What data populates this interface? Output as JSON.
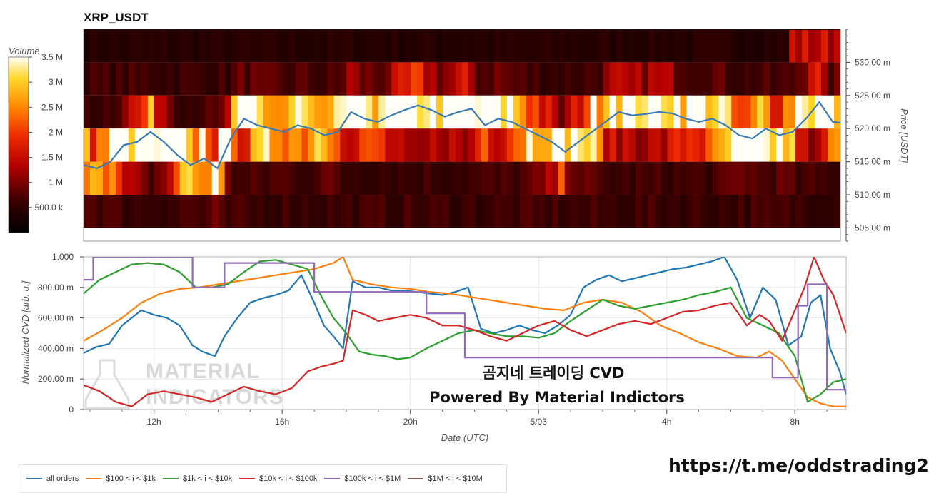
{
  "chart_data": [
    {
      "type": "heatmap",
      "title": "XRP_USDT",
      "ylabel": "Price [USDT]",
      "ylim": [
        0.503,
        0.535
      ],
      "yticks": [
        "505.00 m",
        "510.00 m",
        "515.00 m",
        "520.00 m",
        "525.00 m",
        "530.00 m"
      ],
      "ytick_values": [
        0.505,
        0.51,
        0.515,
        0.52,
        0.525,
        0.53
      ],
      "price_bands": [
        0.5325,
        0.5275,
        0.5225,
        0.5175,
        0.5125,
        0.5075
      ],
      "colorbar": {
        "label": "Volume",
        "ticks": [
          "500.0 k",
          "1 M",
          "1.5 M",
          "2 M",
          "2.5 M",
          "3 M",
          "3.5 M"
        ],
        "tick_values": [
          500000,
          1000000,
          1500000,
          2000000,
          2500000,
          3000000,
          3500000
        ],
        "range": [
          0,
          3500000
        ]
      },
      "price_series": {
        "color": "#3a7bb5",
        "values": [
          0.5145,
          0.514,
          0.515,
          0.5175,
          0.518,
          0.5195,
          0.518,
          0.516,
          0.5145,
          0.5155,
          0.514,
          0.5185,
          0.5215,
          0.5205,
          0.52,
          0.5195,
          0.5205,
          0.52,
          0.519,
          0.5195,
          0.5225,
          0.5215,
          0.521,
          0.522,
          0.5228,
          0.5235,
          0.5228,
          0.5218,
          0.5225,
          0.523,
          0.5205,
          0.5215,
          0.521,
          0.52,
          0.519,
          0.518,
          0.5165,
          0.518,
          0.5195,
          0.521,
          0.5225,
          0.522,
          0.5222,
          0.5225,
          0.5223,
          0.5215,
          0.521,
          0.5215,
          0.5205,
          0.519,
          0.5185,
          0.52,
          0.519,
          0.5195,
          0.5215,
          0.524,
          0.521,
          0.5208
        ]
      }
    },
    {
      "type": "line",
      "xlabel": "Date (UTC)",
      "ylabel": "Normalized CVD [arb. u.]",
      "ylim": [
        0,
        1
      ],
      "yticks": [
        "0",
        "200.00 m",
        "400.00 m",
        "600.00 m",
        "800.00 m",
        "1.000"
      ],
      "ytick_values": [
        0,
        0.2,
        0.4,
        0.6,
        0.8,
        1.0
      ],
      "xticks": [
        "12h",
        "16h",
        "20h",
        "5/03",
        "4h",
        "8h"
      ],
      "xtick_hours": [
        12,
        16,
        20,
        24,
        28,
        32
      ],
      "xlim_hours": [
        9.8,
        33.6
      ],
      "series": [
        {
          "name": "all orders",
          "color": "#1f77b4",
          "x": [
            9.8,
            10.2,
            10.6,
            11.0,
            11.3,
            11.6,
            12.0,
            12.4,
            12.8,
            13.2,
            13.5,
            13.9,
            14.2,
            14.6,
            15.0,
            15.4,
            15.8,
            16.2,
            16.6,
            17.0,
            17.3,
            17.6,
            17.9,
            18.2,
            18.6,
            19.0,
            19.4,
            19.8,
            20.2,
            20.6,
            21.0,
            21.4,
            21.8,
            22.2,
            22.6,
            23.0,
            23.4,
            23.8,
            24.2,
            24.6,
            25.0,
            25.4,
            25.8,
            26.2,
            26.6,
            27.0,
            27.4,
            27.8,
            28.2,
            28.6,
            29.0,
            29.4,
            29.8,
            30.2,
            30.6,
            31.0,
            31.4,
            31.8,
            32.2,
            32.5,
            32.8,
            33.1,
            33.4,
            33.6
          ],
          "y": [
            0.37,
            0.41,
            0.43,
            0.55,
            0.6,
            0.65,
            0.62,
            0.6,
            0.55,
            0.42,
            0.38,
            0.35,
            0.48,
            0.6,
            0.7,
            0.73,
            0.75,
            0.78,
            0.88,
            0.7,
            0.55,
            0.48,
            0.4,
            0.84,
            0.8,
            0.8,
            0.78,
            0.78,
            0.77,
            0.76,
            0.75,
            0.77,
            0.8,
            0.53,
            0.5,
            0.52,
            0.55,
            0.52,
            0.5,
            0.55,
            0.62,
            0.8,
            0.85,
            0.88,
            0.84,
            0.86,
            0.88,
            0.9,
            0.92,
            0.93,
            0.95,
            0.97,
            1.0,
            0.85,
            0.6,
            0.8,
            0.72,
            0.42,
            0.48,
            0.7,
            0.75,
            0.4,
            0.25,
            0.1
          ]
        },
        {
          "name": "$100 < i < $1k",
          "color": "#ff7f0e",
          "x": [
            9.8,
            10.4,
            11.0,
            11.6,
            12.2,
            12.8,
            13.4,
            14.0,
            14.6,
            15.2,
            15.8,
            16.4,
            17.0,
            17.6,
            17.9,
            18.2,
            18.8,
            19.4,
            20.0,
            20.6,
            21.2,
            21.8,
            22.4,
            23.0,
            23.6,
            24.2,
            24.8,
            25.4,
            26.0,
            26.6,
            27.2,
            27.8,
            28.4,
            29.0,
            29.6,
            30.2,
            30.8,
            31.2,
            31.6,
            32.0,
            32.4,
            32.8,
            33.2,
            33.6
          ],
          "y": [
            0.45,
            0.52,
            0.6,
            0.7,
            0.76,
            0.79,
            0.8,
            0.82,
            0.84,
            0.86,
            0.88,
            0.9,
            0.92,
            0.96,
            1.0,
            0.85,
            0.82,
            0.8,
            0.79,
            0.77,
            0.76,
            0.74,
            0.72,
            0.7,
            0.68,
            0.66,
            0.65,
            0.7,
            0.72,
            0.7,
            0.64,
            0.55,
            0.5,
            0.44,
            0.4,
            0.35,
            0.34,
            0.38,
            0.32,
            0.2,
            0.08,
            0.04,
            0.02,
            0.02
          ]
        },
        {
          "name": "$1k < i < $10k",
          "color": "#2ca02c",
          "x": [
            9.8,
            10.3,
            10.8,
            11.3,
            11.8,
            12.3,
            12.8,
            13.3,
            13.8,
            14.3,
            14.8,
            15.3,
            15.8,
            16.3,
            16.8,
            17.2,
            17.6,
            18.0,
            18.4,
            18.8,
            19.2,
            19.6,
            20.0,
            20.5,
            21.0,
            21.5,
            22.0,
            22.5,
            23.0,
            23.5,
            24.0,
            24.5,
            25.0,
            25.5,
            26.0,
            26.5,
            27.0,
            27.5,
            28.0,
            28.5,
            29.0,
            29.5,
            30.0,
            30.5,
            31.0,
            31.5,
            32.0,
            32.4,
            32.8,
            33.2,
            33.6
          ],
          "y": [
            0.76,
            0.85,
            0.9,
            0.95,
            0.96,
            0.95,
            0.9,
            0.8,
            0.8,
            0.82,
            0.9,
            0.97,
            0.98,
            0.95,
            0.92,
            0.75,
            0.6,
            0.5,
            0.38,
            0.36,
            0.35,
            0.33,
            0.34,
            0.4,
            0.45,
            0.5,
            0.52,
            0.5,
            0.48,
            0.48,
            0.47,
            0.5,
            0.58,
            0.65,
            0.72,
            0.68,
            0.66,
            0.68,
            0.7,
            0.72,
            0.75,
            0.77,
            0.8,
            0.6,
            0.55,
            0.5,
            0.35,
            0.05,
            0.1,
            0.18,
            0.2
          ]
        },
        {
          "name": "$10k < i < $100k",
          "color": "#d62728",
          "x": [
            9.8,
            10.3,
            10.8,
            11.3,
            11.8,
            12.3,
            12.8,
            13.3,
            13.8,
            14.3,
            14.8,
            15.3,
            15.8,
            16.3,
            16.8,
            17.2,
            17.6,
            17.9,
            18.2,
            18.6,
            19.0,
            19.5,
            20.0,
            20.5,
            21.0,
            21.5,
            22.0,
            22.5,
            23.0,
            23.5,
            24.0,
            24.5,
            25.0,
            25.5,
            26.0,
            26.5,
            27.0,
            27.5,
            28.0,
            28.5,
            29.0,
            29.5,
            30.0,
            30.5,
            30.9,
            31.2,
            31.6,
            32.0,
            32.3,
            32.6,
            32.9,
            33.2,
            33.6
          ],
          "y": [
            0.16,
            0.12,
            0.05,
            0.02,
            0.1,
            0.12,
            0.1,
            0.08,
            0.05,
            0.1,
            0.15,
            0.12,
            0.1,
            0.14,
            0.25,
            0.28,
            0.3,
            0.32,
            0.65,
            0.62,
            0.58,
            0.6,
            0.62,
            0.6,
            0.55,
            0.55,
            0.52,
            0.48,
            0.45,
            0.5,
            0.55,
            0.58,
            0.52,
            0.48,
            0.52,
            0.56,
            0.58,
            0.56,
            0.6,
            0.64,
            0.65,
            0.68,
            0.7,
            0.55,
            0.62,
            0.58,
            0.45,
            0.65,
            0.8,
            1.0,
            0.85,
            0.75,
            0.5
          ]
        },
        {
          "name": "$100k < i < $1M",
          "color": "#9467bd",
          "x": [
            9.8,
            10.1,
            10.1,
            11.2,
            12.0,
            12.8,
            13.2,
            13.2,
            14.2,
            14.2,
            15.2,
            16.0,
            16.8,
            17.0,
            17.0,
            19.0,
            20.5,
            20.5,
            21.7,
            21.7,
            23.0,
            25.0,
            27.0,
            29.0,
            30.0,
            31.0,
            31.3,
            31.3,
            32.1,
            32.1,
            32.4,
            32.4,
            33.0,
            33.0,
            33.6
          ],
          "y": [
            0.85,
            0.85,
            1.0,
            1.0,
            1.0,
            1.0,
            1.0,
            0.8,
            0.8,
            0.96,
            0.96,
            0.96,
            0.96,
            0.96,
            0.77,
            0.77,
            0.77,
            0.63,
            0.63,
            0.34,
            0.34,
            0.34,
            0.34,
            0.34,
            0.34,
            0.34,
            0.34,
            0.21,
            0.21,
            0.68,
            0.68,
            0.82,
            0.82,
            0.13,
            0.13
          ]
        },
        {
          "name": "$1M < i < $10M",
          "color": "#8c564b",
          "x": [],
          "y": []
        }
      ]
    }
  ],
  "overlay": {
    "line1": "곰지네 트레이딩 CVD",
    "line2": "Powered By Material Indictors",
    "watermark1": "MATERIAL",
    "watermark2": "INDICATORS"
  },
  "footer_link": "https://t.me/oddstrading2",
  "legend_items": [
    "all orders",
    "$100 < i < $1k",
    "$1k < i < $10k",
    "$10k < i < $100k",
    "$100k < i < $1M",
    "$1M < i < $10M"
  ]
}
